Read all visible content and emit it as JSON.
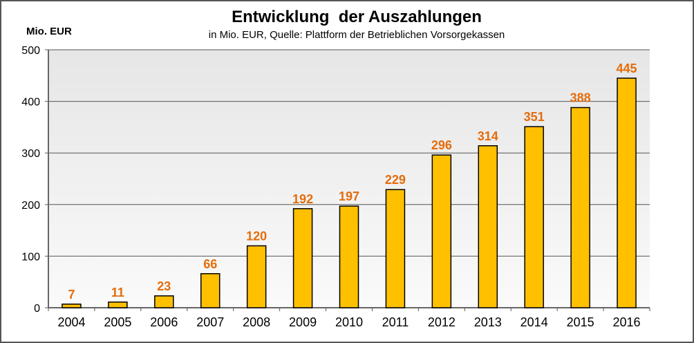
{
  "chart_data": {
    "type": "bar",
    "title": "Entwicklung  der Auszahlungen",
    "subtitle": "in Mio. EUR, Quelle: Plattform der Betrieblichen Vorsorgekassen",
    "ylabel": "Mio. EUR",
    "xlabel": "",
    "categories": [
      "2004",
      "2005",
      "2006",
      "2007",
      "2008",
      "2009",
      "2010",
      "2011",
      "2012",
      "2013",
      "2014",
      "2015",
      "2016"
    ],
    "values": [
      7,
      11,
      23,
      66,
      120,
      192,
      197,
      229,
      296,
      314,
      351,
      388,
      445
    ],
    "ylim": [
      0,
      500
    ],
    "yticks": [
      0,
      100,
      200,
      300,
      400,
      500
    ],
    "grid": true,
    "legend": "none",
    "colors": {
      "bar": "#FFC000",
      "bar_outline": "#000000",
      "data_label": "#E46C0A",
      "plot_bg_top": "#E6E6E6",
      "plot_bg_bottom": "#FAFAFA"
    }
  }
}
